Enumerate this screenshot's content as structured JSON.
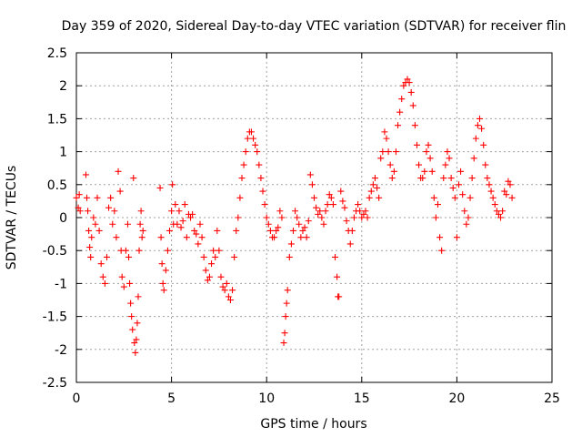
{
  "chart_data": {
    "type": "scatter",
    "title": "Day 359 of 2020, Sidereal Day-to-day VTEC variation (SDTVAR) for receiver flin",
    "xlabel": "GPS time / hours",
    "ylabel": "SDTVAR / TECUs",
    "xlim": [
      0,
      25
    ],
    "ylim": [
      -2.5,
      2.5
    ],
    "x_ticks": [
      "0",
      "5",
      "10",
      "15",
      "20",
      "25"
    ],
    "y_ticks": [
      "2.5",
      "2",
      "1.5",
      "1",
      "0.5",
      "0",
      "-0.5",
      "-1",
      "-1.5",
      "-2",
      "-2.5"
    ],
    "grid": true,
    "marker": "plus",
    "color": "#ff0000",
    "series": [
      {
        "name": "SDTVAR",
        "points": [
          [
            0.0,
            0.3
          ],
          [
            0.1,
            0.15
          ],
          [
            0.15,
            0.35
          ],
          [
            0.2,
            0.1
          ],
          [
            0.5,
            0.65
          ],
          [
            0.55,
            0.3
          ],
          [
            0.6,
            0.1
          ],
          [
            0.65,
            -0.2
          ],
          [
            0.7,
            -0.45
          ],
          [
            0.75,
            -0.6
          ],
          [
            0.8,
            -0.3
          ],
          [
            0.9,
            0.0
          ],
          [
            1.0,
            -0.1
          ],
          [
            1.1,
            0.3
          ],
          [
            1.2,
            -0.2
          ],
          [
            1.3,
            -0.7
          ],
          [
            1.4,
            -0.9
          ],
          [
            1.5,
            -1.0
          ],
          [
            1.6,
            -0.6
          ],
          [
            1.7,
            0.15
          ],
          [
            1.8,
            0.3
          ],
          [
            1.9,
            -0.1
          ],
          [
            2.0,
            0.1
          ],
          [
            2.1,
            -0.3
          ],
          [
            2.2,
            0.7
          ],
          [
            2.3,
            0.4
          ],
          [
            2.35,
            -0.5
          ],
          [
            2.4,
            -0.9
          ],
          [
            2.5,
            -1.05
          ],
          [
            2.6,
            -0.5
          ],
          [
            2.7,
            -0.1
          ],
          [
            2.75,
            -0.6
          ],
          [
            2.8,
            -1.0
          ],
          [
            2.85,
            -1.3
          ],
          [
            2.9,
            -1.5
          ],
          [
            2.95,
            -1.7
          ],
          [
            3.0,
            0.6
          ],
          [
            3.05,
            -1.9
          ],
          [
            3.1,
            -2.05
          ],
          [
            3.15,
            -1.85
          ],
          [
            3.2,
            -1.6
          ],
          [
            3.25,
            -1.2
          ],
          [
            3.3,
            -0.5
          ],
          [
            3.35,
            -0.1
          ],
          [
            3.4,
            0.1
          ],
          [
            3.45,
            -0.3
          ],
          [
            3.5,
            -0.2
          ],
          [
            4.4,
            0.45
          ],
          [
            4.45,
            -0.3
          ],
          [
            4.5,
            -0.7
          ],
          [
            4.55,
            -1.0
          ],
          [
            4.6,
            -1.1
          ],
          [
            4.7,
            -0.8
          ],
          [
            4.8,
            -0.5
          ],
          [
            4.9,
            -0.2
          ],
          [
            5.0,
            0.1
          ],
          [
            5.05,
            0.5
          ],
          [
            5.1,
            -0.1
          ],
          [
            5.2,
            0.2
          ],
          [
            5.3,
            -0.1
          ],
          [
            5.4,
            0.1
          ],
          [
            5.5,
            -0.15
          ],
          [
            5.6,
            -0.05
          ],
          [
            5.7,
            0.2
          ],
          [
            5.8,
            -0.3
          ],
          [
            5.9,
            0.05
          ],
          [
            6.0,
            0.0
          ],
          [
            6.1,
            0.05
          ],
          [
            6.2,
            -0.2
          ],
          [
            6.3,
            -0.25
          ],
          [
            6.4,
            -0.4
          ],
          [
            6.5,
            -0.1
          ],
          [
            6.6,
            -0.3
          ],
          [
            6.7,
            -0.6
          ],
          [
            6.8,
            -0.8
          ],
          [
            6.9,
            -0.95
          ],
          [
            7.0,
            -0.9
          ],
          [
            7.1,
            -0.7
          ],
          [
            7.2,
            -0.5
          ],
          [
            7.3,
            -0.6
          ],
          [
            7.4,
            -0.2
          ],
          [
            7.5,
            -0.5
          ],
          [
            7.6,
            -0.9
          ],
          [
            7.7,
            -1.05
          ],
          [
            7.8,
            -1.1
          ],
          [
            7.9,
            -1.0
          ],
          [
            8.0,
            -1.2
          ],
          [
            8.1,
            -1.25
          ],
          [
            8.2,
            -1.1
          ],
          [
            8.3,
            -0.6
          ],
          [
            8.4,
            -0.2
          ],
          [
            8.5,
            0.0
          ],
          [
            8.6,
            0.3
          ],
          [
            8.7,
            0.6
          ],
          [
            8.8,
            0.8
          ],
          [
            8.9,
            1.0
          ],
          [
            9.0,
            1.2
          ],
          [
            9.1,
            1.3
          ],
          [
            9.2,
            1.3
          ],
          [
            9.3,
            1.2
          ],
          [
            9.4,
            1.1
          ],
          [
            9.5,
            1.0
          ],
          [
            9.6,
            0.8
          ],
          [
            9.7,
            0.6
          ],
          [
            9.8,
            0.4
          ],
          [
            9.9,
            0.2
          ],
          [
            10.0,
            0.0
          ],
          [
            10.1,
            -0.1
          ],
          [
            10.2,
            -0.2
          ],
          [
            10.3,
            -0.3
          ],
          [
            10.4,
            -0.3
          ],
          [
            10.5,
            -0.2
          ],
          [
            10.6,
            -0.15
          ],
          [
            10.7,
            0.1
          ],
          [
            10.8,
            0.0
          ],
          [
            10.9,
            -1.9
          ],
          [
            10.95,
            -1.75
          ],
          [
            11.0,
            -1.5
          ],
          [
            11.05,
            -1.3
          ],
          [
            11.1,
            -1.1
          ],
          [
            11.2,
            -0.6
          ],
          [
            11.3,
            -0.4
          ],
          [
            11.4,
            -0.2
          ],
          [
            11.5,
            0.1
          ],
          [
            11.6,
            0.0
          ],
          [
            11.7,
            -0.1
          ],
          [
            11.8,
            -0.3
          ],
          [
            11.9,
            -0.2
          ],
          [
            12.0,
            -0.15
          ],
          [
            12.1,
            -0.3
          ],
          [
            12.2,
            -0.05
          ],
          [
            12.3,
            0.65
          ],
          [
            12.4,
            0.5
          ],
          [
            12.5,
            0.3
          ],
          [
            12.6,
            0.15
          ],
          [
            12.7,
            0.05
          ],
          [
            12.8,
            0.1
          ],
          [
            12.9,
            0.0
          ],
          [
            13.0,
            -0.1
          ],
          [
            13.1,
            0.1
          ],
          [
            13.2,
            0.2
          ],
          [
            13.3,
            0.35
          ],
          [
            13.4,
            0.3
          ],
          [
            13.5,
            0.2
          ],
          [
            13.6,
            -0.6
          ],
          [
            13.7,
            -0.9
          ],
          [
            13.75,
            -1.2
          ],
          [
            13.8,
            -1.2
          ],
          [
            13.9,
            0.4
          ],
          [
            14.0,
            0.25
          ],
          [
            14.1,
            0.15
          ],
          [
            14.2,
            -0.05
          ],
          [
            14.3,
            -0.2
          ],
          [
            14.4,
            -0.4
          ],
          [
            14.5,
            -0.2
          ],
          [
            14.6,
            0.0
          ],
          [
            14.7,
            0.1
          ],
          [
            14.8,
            0.2
          ],
          [
            14.9,
            0.1
          ],
          [
            15.0,
            0.0
          ],
          [
            15.1,
            0.05
          ],
          [
            15.2,
            0.1
          ],
          [
            15.3,
            0.0
          ],
          [
            15.4,
            0.3
          ],
          [
            15.5,
            0.4
          ],
          [
            15.6,
            0.5
          ],
          [
            15.7,
            0.6
          ],
          [
            15.8,
            0.45
          ],
          [
            15.9,
            0.3
          ],
          [
            16.0,
            0.9
          ],
          [
            16.1,
            1.0
          ],
          [
            16.2,
            1.3
          ],
          [
            16.3,
            1.2
          ],
          [
            16.4,
            1.0
          ],
          [
            16.5,
            0.8
          ],
          [
            16.6,
            0.6
          ],
          [
            16.7,
            0.7
          ],
          [
            16.8,
            1.0
          ],
          [
            16.9,
            1.4
          ],
          [
            17.0,
            1.6
          ],
          [
            17.1,
            1.8
          ],
          [
            17.2,
            2.0
          ],
          [
            17.3,
            2.05
          ],
          [
            17.4,
            2.1
          ],
          [
            17.5,
            2.05
          ],
          [
            17.6,
            1.9
          ],
          [
            17.7,
            1.7
          ],
          [
            17.8,
            1.4
          ],
          [
            17.9,
            1.1
          ],
          [
            18.0,
            0.8
          ],
          [
            18.1,
            0.6
          ],
          [
            18.2,
            0.6
          ],
          [
            18.3,
            0.7
          ],
          [
            18.4,
            1.0
          ],
          [
            18.5,
            1.1
          ],
          [
            18.6,
            0.9
          ],
          [
            18.7,
            0.7
          ],
          [
            18.8,
            0.3
          ],
          [
            18.9,
            0.0
          ],
          [
            19.0,
            0.2
          ],
          [
            19.1,
            -0.3
          ],
          [
            19.2,
            -0.5
          ],
          [
            19.3,
            0.6
          ],
          [
            19.4,
            0.8
          ],
          [
            19.5,
            1.0
          ],
          [
            19.6,
            0.9
          ],
          [
            19.7,
            0.6
          ],
          [
            19.8,
            0.45
          ],
          [
            19.9,
            0.3
          ],
          [
            20.0,
            -0.3
          ],
          [
            20.1,
            0.5
          ],
          [
            20.2,
            0.7
          ],
          [
            20.3,
            0.35
          ],
          [
            20.4,
            0.1
          ],
          [
            20.5,
            -0.1
          ],
          [
            20.6,
            0.0
          ],
          [
            20.7,
            0.3
          ],
          [
            20.8,
            0.6
          ],
          [
            20.9,
            0.9
          ],
          [
            21.0,
            1.2
          ],
          [
            21.1,
            1.4
          ],
          [
            21.2,
            1.5
          ],
          [
            21.3,
            1.35
          ],
          [
            21.4,
            1.1
          ],
          [
            21.5,
            0.8
          ],
          [
            21.6,
            0.6
          ],
          [
            21.7,
            0.5
          ],
          [
            21.8,
            0.4
          ],
          [
            21.9,
            0.3
          ],
          [
            22.0,
            0.2
          ],
          [
            22.1,
            0.1
          ],
          [
            22.2,
            0.05
          ],
          [
            22.3,
            0.0
          ],
          [
            22.4,
            0.1
          ],
          [
            22.5,
            0.4
          ],
          [
            22.6,
            0.35
          ],
          [
            22.7,
            0.55
          ],
          [
            22.8,
            0.5
          ],
          [
            22.9,
            0.3
          ]
        ]
      }
    ]
  }
}
